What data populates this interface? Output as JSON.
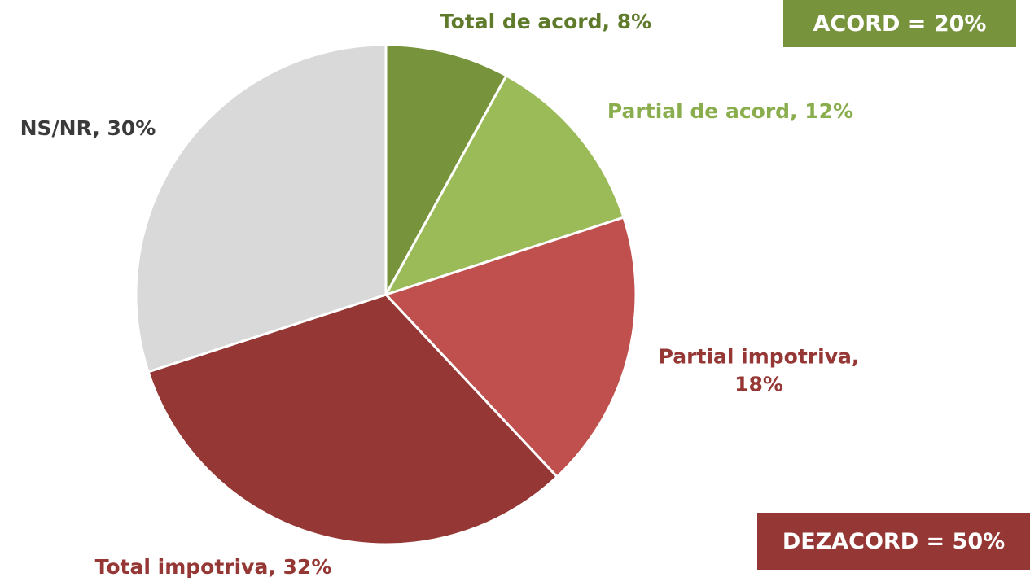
{
  "chart_data": {
    "type": "pie",
    "categories": [
      "Total de acord",
      "Partial de acord",
      "Partial impotriva",
      "Total impotriva",
      "NS/NR"
    ],
    "values": [
      8,
      12,
      18,
      32,
      30
    ],
    "value_labels": [
      "Total de acord, 8%",
      "Partial de acord, 12%",
      "Partial impotriva, 18%",
      "Total impotriva, 32%",
      "NS/NR, 30%"
    ],
    "colors": [
      "#77933c",
      "#9bbb59",
      "#c0504d",
      "#953735",
      "#d9d9d9"
    ],
    "label_colors": [
      "#5e7a2a",
      "#8aae4e",
      "#953735",
      "#953735",
      "#3a3a3a"
    ],
    "annotations": [
      {
        "text": "ACORD = 20%",
        "color": "#77933c"
      },
      {
        "text": "DEZACORD = 50%",
        "color": "#953735"
      }
    ]
  }
}
